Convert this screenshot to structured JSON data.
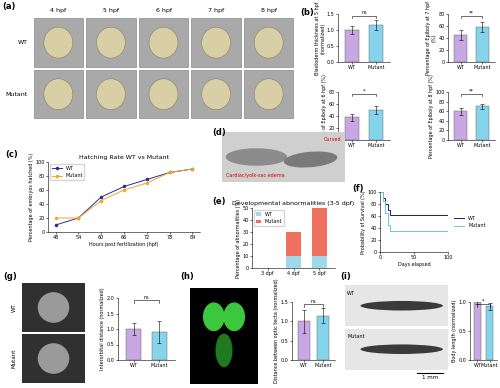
{
  "chart_data": [
    {
      "type": "bar",
      "panel": "(b)",
      "y_label": "Blastoderm thickness at 5 hpf (normalized)",
      "categories": [
        "WT",
        "Mutant"
      ],
      "values": [
        1.0,
        1.15
      ],
      "errors": [
        0.12,
        0.15
      ],
      "colors": [
        "#c9a7e3",
        "#86d4ec"
      ],
      "ylim": [
        0,
        1.5
      ],
      "yticks": [
        {
          "value": 0,
          "label": "0.0"
        },
        {
          "value": 0.5,
          "label": "0.5"
        },
        {
          "value": 1,
          "label": "1.0"
        },
        {
          "value": 1.5,
          "label": "1.5"
        }
      ],
      "annotation": "ns"
    },
    {
      "type": "bar",
      "y_label": "Percentage of Epiboly at 7 hpf (%)",
      "categories": [
        "WT",
        "Mutant"
      ],
      "values": [
        45,
        58
      ],
      "errors": [
        8,
        8
      ],
      "colors": [
        "#c9a7e3",
        "#86d4ec"
      ],
      "ylim": [
        0,
        80
      ],
      "yticks": [
        0,
        20,
        40,
        60,
        80
      ],
      "annotation": "**"
    },
    {
      "type": "bar",
      "y_label": "Percentage of Epiboly at 6 hpf (%)",
      "categories": [
        "WT",
        "Mutant"
      ],
      "values": [
        38,
        50
      ],
      "errors": [
        6,
        7
      ],
      "colors": [
        "#c9a7e3",
        "#86d4ec"
      ],
      "ylim": [
        0,
        80
      ],
      "yticks": [
        0,
        20,
        40,
        60,
        80
      ],
      "annotation": "*"
    },
    {
      "type": "bar",
      "y_label": "Percentage of Epiboly at 8 hpf (%)",
      "categories": [
        "WT",
        "Mutant"
      ],
      "values": [
        60,
        70
      ],
      "errors": [
        7,
        5
      ],
      "colors": [
        "#c9a7e3",
        "#86d4ec"
      ],
      "ylim": [
        0,
        100
      ],
      "yticks": [
        0,
        20,
        40,
        60,
        80,
        100
      ],
      "annotation": "**"
    },
    {
      "type": "line",
      "panel": "(c)",
      "title": "Hatching Rate WT vs Mutant",
      "x_label": "Hours post fertilization (hpf)",
      "y_label": "Percentage of embryos hatched (%)",
      "x": [
        48,
        54,
        60,
        66,
        72,
        78,
        84
      ],
      "series": [
        {
          "name": "WT",
          "color": "#2b2b9a",
          "marker": "o",
          "values": [
            10,
            20,
            50,
            65,
            75,
            85,
            90
          ]
        },
        {
          "name": "Mutant",
          "color": "#f5a623",
          "marker": "o",
          "values": [
            20,
            20,
            45,
            60,
            70,
            85,
            90
          ]
        }
      ],
      "xlim": [
        46,
        86
      ],
      "xticks": [
        48,
        54,
        60,
        66,
        72,
        78,
        84
      ],
      "ylim": [
        0,
        100
      ],
      "yticks": [
        0,
        20,
        40,
        60,
        80,
        100
      ],
      "legend": "upper left"
    },
    {
      "type": "bar",
      "panel": "(e)",
      "title": "Developmental abnormalities (3-5 dpf)",
      "y_label": "Percentage of abnormalities (%)",
      "stacked": true,
      "categories": [
        "3 dpf",
        "4 dpf",
        "5 dpf"
      ],
      "series": [
        {
          "name": "WT",
          "color": "#9fd8ea",
          "values": [
            0,
            10,
            10
          ]
        },
        {
          "name": "Mutant",
          "color": "#f07060",
          "values": [
            0,
            20,
            40
          ]
        }
      ],
      "ylim": [
        0,
        50
      ],
      "yticks": [
        0,
        10,
        20,
        30,
        40,
        50
      ],
      "legend": "upper left"
    },
    {
      "type": "step",
      "panel": "(f)",
      "x_label": "Days elapsed",
      "y_label": "Probability of Survival (%)",
      "series": [
        {
          "name": "WT",
          "color": "#1a1a8c",
          "x": [
            0,
            5,
            8,
            12,
            15,
            100
          ],
          "values": [
            100,
            90,
            80,
            70,
            62,
            62
          ]
        },
        {
          "name": "Mutant",
          "color": "#6cc6d6",
          "x": [
            0,
            5,
            8,
            12,
            15,
            100
          ],
          "values": [
            100,
            85,
            65,
            45,
            35,
            35
          ]
        }
      ],
      "xlim": [
        0,
        100
      ],
      "xticks": [
        0,
        50,
        100
      ],
      "ylim": [
        0,
        100
      ],
      "yticks": [
        0,
        20,
        40,
        60,
        80,
        100
      ],
      "legend": "right"
    },
    {
      "type": "bar",
      "y_label": "Interorbital distance (normalized)",
      "categories": [
        "WT",
        "Mutant"
      ],
      "values": [
        1.0,
        0.9
      ],
      "errors": [
        0.2,
        0.35
      ],
      "colors": [
        "#c9a7e3",
        "#86d4ec"
      ],
      "ylim": [
        0,
        2
      ],
      "yticks": [
        {
          "value": 0,
          "label": "0.0"
        },
        {
          "value": 0.5,
          "label": "0.5"
        },
        {
          "value": 1,
          "label": "1.0"
        },
        {
          "value": 1.5,
          "label": "1.5"
        },
        {
          "value": 2,
          "label": "2.0"
        }
      ],
      "annotation": "ns"
    },
    {
      "type": "bar",
      "y_label": "Distance between optic tecta (normalized)",
      "categories": [
        "WT",
        "Mutant"
      ],
      "values": [
        1.0,
        1.15
      ],
      "errors": [
        0.3,
        0.2
      ],
      "colors": [
        "#c9a7e3",
        "#86d4ec"
      ],
      "ylim": [
        0,
        1.5
      ],
      "yticks": [
        {
          "value": 0,
          "label": "0.0"
        },
        {
          "value": 0.5,
          "label": "0.5"
        },
        {
          "value": 1,
          "label": "1.0"
        },
        {
          "value": 1.5,
          "label": "1.5"
        }
      ],
      "annotation": "ns"
    },
    {
      "type": "bar",
      "y_label": "Body length (normalized)",
      "categories": [
        "WT",
        "Mutant"
      ],
      "values": [
        1.0,
        0.93
      ],
      "errors": [
        0.03,
        0.06
      ],
      "colors": [
        "#c9a7e3",
        "#86d4ec"
      ],
      "ylim": [
        0,
        1
      ],
      "yticks": [
        {
          "value": 0,
          "label": "0.0"
        },
        {
          "value": 0.5,
          "label": "0.5"
        },
        {
          "value": 1,
          "label": "1.0"
        }
      ],
      "annotation": "*"
    }
  ],
  "images": [
    {
      "panel": "(a)",
      "columns": [
        "4 hpf",
        "5 hpf",
        "6 hpf",
        "7 hpf",
        "8 hpf"
      ],
      "rows": [
        "WT",
        "Mutant"
      ]
    },
    {
      "panel": "(d)",
      "labels": [
        "Cardiac/yolk-sac edema",
        "Curved"
      ]
    },
    {
      "panel": "(g)",
      "rows": [
        "WT",
        "Mutant"
      ]
    },
    {
      "panel": "(h)"
    },
    {
      "panel": "(i)",
      "rows": [
        "WT",
        "Mutant"
      ],
      "scale_bar": "1 mm"
    }
  ]
}
